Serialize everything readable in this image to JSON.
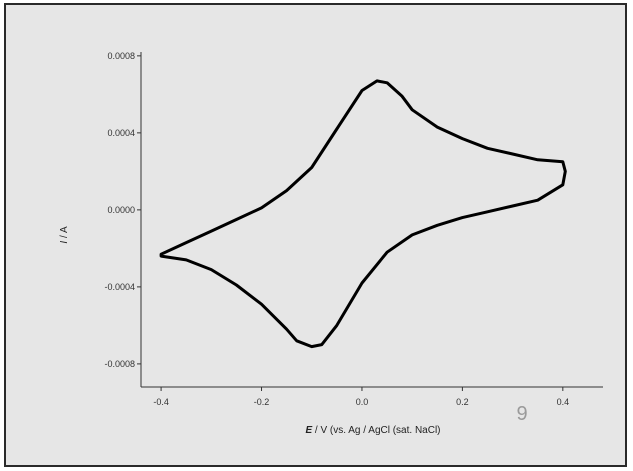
{
  "chart_data": {
    "type": "line",
    "title": "",
    "xlabel_italic": "E",
    "xlabel_rest": " / V (vs. Ag / AgCl (sat. NaCl)",
    "ylabel_italic": "I",
    "ylabel_rest": " / A",
    "xlim": [
      -0.44,
      0.48
    ],
    "ylim": [
      -0.00092,
      0.00082
    ],
    "x_ticks": [
      -0.4,
      -0.2,
      0.0,
      0.2,
      0.4
    ],
    "x_tick_labels": [
      "-0.4",
      "-0.2",
      "0.0",
      "0.2",
      "0.4"
    ],
    "y_ticks": [
      0.0008,
      0.0004,
      0.0,
      -0.0004,
      -0.0008
    ],
    "y_tick_labels": [
      "0.0008",
      "0.0004",
      "0.0000",
      "-0.0004",
      "-0.0008"
    ],
    "grid": false,
    "line_color": "#000000",
    "series": [
      {
        "x": [
          -0.4,
          -0.35,
          -0.3,
          -0.25,
          -0.2,
          -0.15,
          -0.1,
          -0.05,
          0.0,
          0.03,
          0.05,
          0.08,
          0.1,
          0.15,
          0.2,
          0.25,
          0.3,
          0.35,
          0.4,
          0.405,
          0.4,
          0.35,
          0.3,
          0.25,
          0.2,
          0.15,
          0.1,
          0.05,
          0.0,
          -0.05,
          -0.08,
          -0.1,
          -0.13,
          -0.15,
          -0.2,
          -0.25,
          -0.3,
          -0.35,
          -0.4
        ],
        "y": [
          -0.00023,
          -0.00017,
          -0.00011,
          -5e-05,
          1e-05,
          0.0001,
          0.00022,
          0.00042,
          0.00062,
          0.00067,
          0.00066,
          0.00059,
          0.00052,
          0.00043,
          0.00037,
          0.00032,
          0.00029,
          0.00026,
          0.00025,
          0.0002,
          0.00013,
          5e-05,
          2e-05,
          -1e-05,
          -4e-05,
          -8e-05,
          -0.00013,
          -0.00022,
          -0.00038,
          -0.0006,
          -0.0007,
          -0.00071,
          -0.00068,
          -0.00062,
          -0.00049,
          -0.00039,
          -0.00031,
          -0.00026,
          -0.00024
        ]
      }
    ],
    "annotations": [
      "9"
    ]
  }
}
